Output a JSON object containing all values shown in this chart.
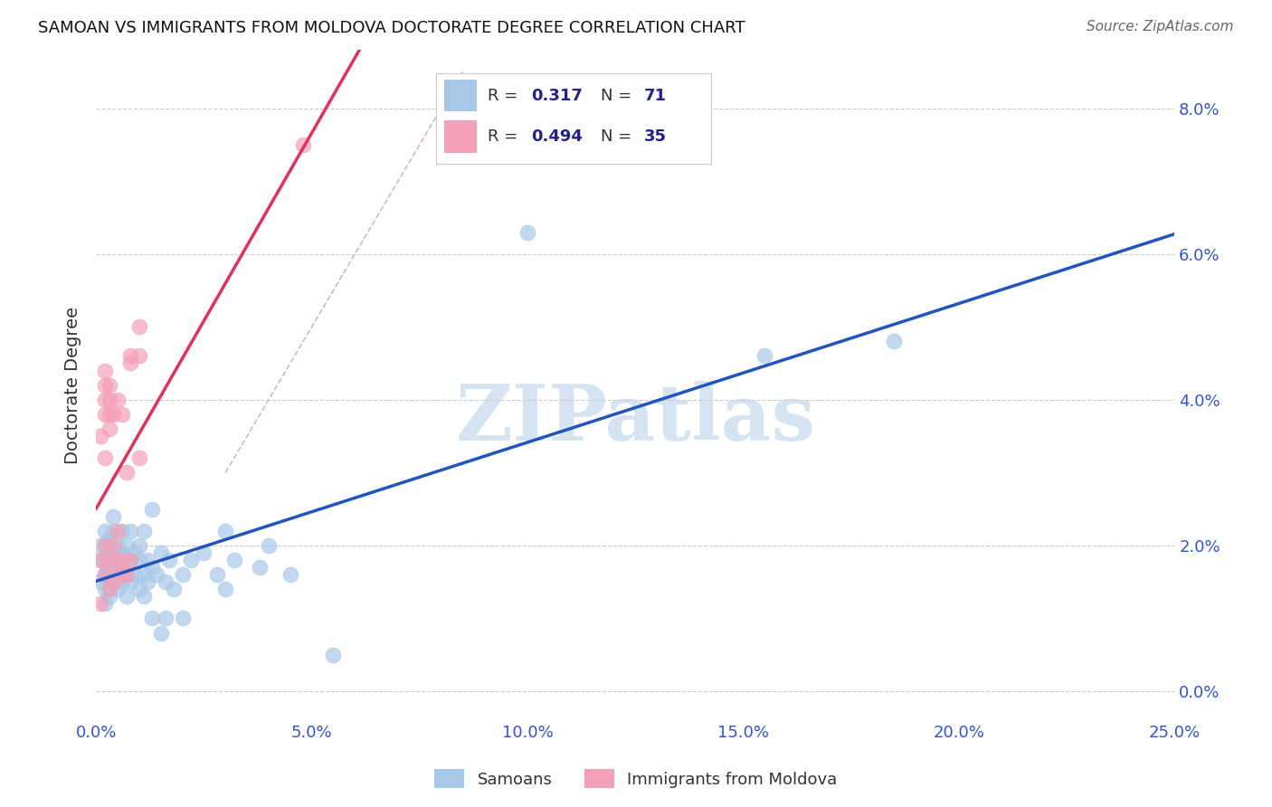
{
  "title": "SAMOAN VS IMMIGRANTS FROM MOLDOVA DOCTORATE DEGREE CORRELATION CHART",
  "source": "Source: ZipAtlas.com",
  "ylabel_label": "Doctorate Degree",
  "x_min": 0.0,
  "x_max": 0.25,
  "y_min": -0.004,
  "y_max": 0.088,
  "samoan_color": "#a8c8e8",
  "moldova_color": "#f4a0b8",
  "samoan_line_color": "#2255bb",
  "moldova_line_color": "#e03060",
  "diag_line_color": "#d0b0b8",
  "watermark_color": "#cfe0f0",
  "legend_text_color": "#222288",
  "title_color": "#111111",
  "source_color": "#666666",
  "ylabel_color": "#333333",
  "tick_color": "#3355cc",
  "grid_color": "#cccccc",
  "samoans_scatter": [
    [
      0.001,
      0.018
    ],
    [
      0.001,
      0.015
    ],
    [
      0.001,
      0.02
    ],
    [
      0.002,
      0.016
    ],
    [
      0.002,
      0.014
    ],
    [
      0.002,
      0.018
    ],
    [
      0.002,
      0.012
    ],
    [
      0.002,
      0.02
    ],
    [
      0.002,
      0.016
    ],
    [
      0.002,
      0.022
    ],
    [
      0.003,
      0.019
    ],
    [
      0.003,
      0.014
    ],
    [
      0.003,
      0.016
    ],
    [
      0.003,
      0.018
    ],
    [
      0.003,
      0.02
    ],
    [
      0.003,
      0.013
    ],
    [
      0.003,
      0.021
    ],
    [
      0.004,
      0.017
    ],
    [
      0.004,
      0.015
    ],
    [
      0.004,
      0.022
    ],
    [
      0.004,
      0.019
    ],
    [
      0.004,
      0.024
    ],
    [
      0.005,
      0.018
    ],
    [
      0.005,
      0.014
    ],
    [
      0.005,
      0.016
    ],
    [
      0.005,
      0.02
    ],
    [
      0.006,
      0.015
    ],
    [
      0.006,
      0.019
    ],
    [
      0.006,
      0.022
    ],
    [
      0.006,
      0.017
    ],
    [
      0.007,
      0.016
    ],
    [
      0.007,
      0.02
    ],
    [
      0.007,
      0.013
    ],
    [
      0.008,
      0.018
    ],
    [
      0.008,
      0.015
    ],
    [
      0.008,
      0.022
    ],
    [
      0.009,
      0.016
    ],
    [
      0.009,
      0.019
    ],
    [
      0.01,
      0.02
    ],
    [
      0.01,
      0.014
    ],
    [
      0.01,
      0.018
    ],
    [
      0.011,
      0.016
    ],
    [
      0.011,
      0.022
    ],
    [
      0.011,
      0.013
    ],
    [
      0.012,
      0.018
    ],
    [
      0.012,
      0.015
    ],
    [
      0.013,
      0.017
    ],
    [
      0.013,
      0.025
    ],
    [
      0.013,
      0.01
    ],
    [
      0.014,
      0.016
    ],
    [
      0.015,
      0.008
    ],
    [
      0.015,
      0.019
    ],
    [
      0.016,
      0.015
    ],
    [
      0.016,
      0.01
    ],
    [
      0.017,
      0.018
    ],
    [
      0.018,
      0.014
    ],
    [
      0.02,
      0.016
    ],
    [
      0.02,
      0.01
    ],
    [
      0.022,
      0.018
    ],
    [
      0.025,
      0.019
    ],
    [
      0.028,
      0.016
    ],
    [
      0.03,
      0.022
    ],
    [
      0.03,
      0.014
    ],
    [
      0.032,
      0.018
    ],
    [
      0.038,
      0.017
    ],
    [
      0.04,
      0.02
    ],
    [
      0.045,
      0.016
    ],
    [
      0.055,
      0.005
    ],
    [
      0.1,
      0.063
    ],
    [
      0.155,
      0.046
    ],
    [
      0.185,
      0.048
    ]
  ],
  "moldova_scatter": [
    [
      0.001,
      0.012
    ],
    [
      0.001,
      0.018
    ],
    [
      0.001,
      0.035
    ],
    [
      0.002,
      0.02
    ],
    [
      0.002,
      0.038
    ],
    [
      0.002,
      0.04
    ],
    [
      0.002,
      0.042
    ],
    [
      0.002,
      0.032
    ],
    [
      0.002,
      0.016
    ],
    [
      0.003,
      0.036
    ],
    [
      0.003,
      0.038
    ],
    [
      0.003,
      0.042
    ],
    [
      0.003,
      0.018
    ],
    [
      0.003,
      0.014
    ],
    [
      0.003,
      0.04
    ],
    [
      0.004,
      0.015
    ],
    [
      0.004,
      0.038
    ],
    [
      0.004,
      0.02
    ],
    [
      0.005,
      0.016
    ],
    [
      0.005,
      0.04
    ],
    [
      0.005,
      0.018
    ],
    [
      0.005,
      0.022
    ],
    [
      0.006,
      0.018
    ],
    [
      0.006,
      0.016
    ],
    [
      0.006,
      0.038
    ],
    [
      0.007,
      0.03
    ],
    [
      0.007,
      0.016
    ],
    [
      0.008,
      0.046
    ],
    [
      0.008,
      0.045
    ],
    [
      0.008,
      0.018
    ],
    [
      0.01,
      0.05
    ],
    [
      0.01,
      0.046
    ],
    [
      0.01,
      0.032
    ],
    [
      0.048,
      0.075
    ],
    [
      0.002,
      0.044
    ]
  ]
}
